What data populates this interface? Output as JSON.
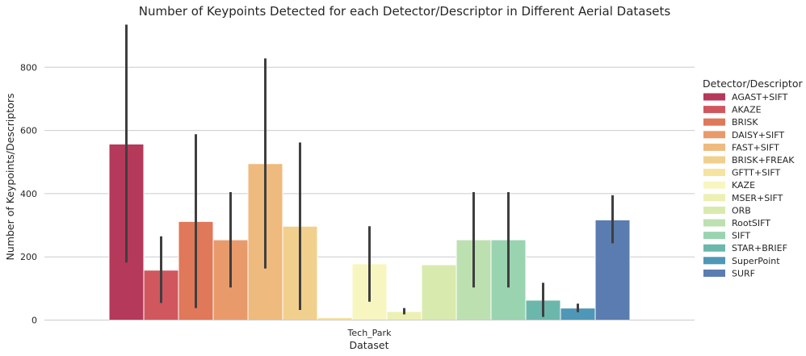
{
  "chart_data": {
    "type": "bar",
    "title": "Number of Keypoints Detected for each Detector/Descriptor in Different Aerial Datasets",
    "xlabel": "Dataset",
    "ylabel": "Number of Keypoints/Descriptors",
    "categories": [
      "Tech_Park"
    ],
    "ylim": [
      0,
      940
    ],
    "yticks": [
      0,
      200,
      400,
      600,
      800
    ],
    "grid": true,
    "legend_title": "Detector/Descriptor",
    "legend_position": "right",
    "series": [
      {
        "name": "AGAST+SIFT",
        "value": 557,
        "ci": [
          182,
          935
        ],
        "color": "#b5395a"
      },
      {
        "name": "AKAZE",
        "value": 158,
        "ci": [
          54,
          265
        ],
        "color": "#d1575f"
      },
      {
        "name": "BRISK",
        "value": 312,
        "ci": [
          38,
          588
        ],
        "color": "#e0785a"
      },
      {
        "name": "DAISY+SIFT",
        "value": 254,
        "ci": [
          103,
          405
        ],
        "color": "#e99a6b"
      },
      {
        "name": "FAST+SIFT",
        "value": 495,
        "ci": [
          163,
          828
        ],
        "color": "#efba7d"
      },
      {
        "name": "BRISK+FREAK",
        "value": 297,
        "ci": [
          32,
          562
        ],
        "color": "#f1d08e"
      },
      {
        "name": "GFTT+SIFT",
        "value": 8,
        "ci": [
          8,
          8
        ],
        "color": "#f5e3a0"
      },
      {
        "name": "KAZE",
        "value": 178,
        "ci": [
          58,
          297
        ],
        "color": "#f8f6c0"
      },
      {
        "name": "MSER+SIFT",
        "value": 27,
        "ci": [
          18,
          38
        ],
        "color": "#edf0b4"
      },
      {
        "name": "ORB",
        "value": 175,
        "ci": [
          175,
          175
        ],
        "color": "#d9eaae"
      },
      {
        "name": "RootSIFT",
        "value": 254,
        "ci": [
          103,
          405
        ],
        "color": "#bde0b0"
      },
      {
        "name": "SIFT",
        "value": 254,
        "ci": [
          103,
          405
        ],
        "color": "#9ad3b0"
      },
      {
        "name": "STAR+BRIEF",
        "value": 63,
        "ci": [
          10,
          118
        ],
        "color": "#6cb7ac"
      },
      {
        "name": "SuperPoint",
        "value": 38,
        "ci": [
          25,
          52
        ],
        "color": "#4f97b6"
      },
      {
        "name": "SURF",
        "value": 317,
        "ci": [
          243,
          395
        ],
        "color": "#5b7cb0"
      }
    ]
  }
}
